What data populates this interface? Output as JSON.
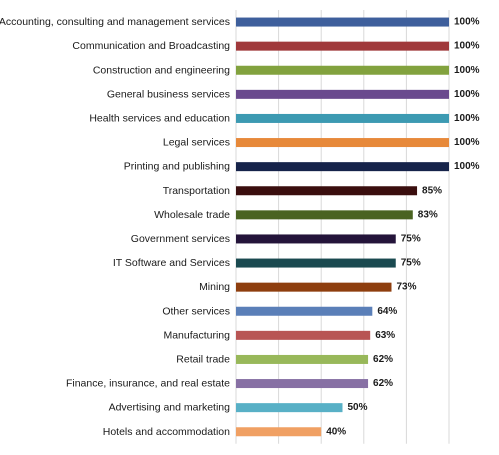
{
  "chart_data": {
    "type": "bar",
    "orientation": "horizontal",
    "xlim": [
      0,
      100
    ],
    "grid": true,
    "legend": "none",
    "categories": [
      "Accounting, consulting and management services",
      "Communication and Broadcasting",
      "Construction and engineering",
      "General business services",
      "Health services and education",
      "Legal services",
      "Printing and publishing",
      "Transportation",
      "Wholesale trade",
      "Government services",
      "IT Software and Services",
      "Mining",
      "Other services",
      "Manufacturing",
      "Retail trade",
      "Finance, insurance, and real estate",
      "Advertising and marketing",
      "Hotels and accommodation"
    ],
    "values": [
      100,
      100,
      100,
      100,
      100,
      100,
      100,
      85,
      83,
      75,
      75,
      73,
      64,
      63,
      62,
      62,
      50,
      40
    ],
    "value_labels": [
      "100%",
      "100%",
      "100%",
      "100%",
      "100%",
      "100%",
      "100%",
      "85%",
      "83%",
      "75%",
      "75%",
      "73%",
      "64%",
      "63%",
      "62%",
      "62%",
      "50%",
      "40%"
    ],
    "colors": [
      "#3E5F9C",
      "#A0393B",
      "#82A23E",
      "#6A4A8E",
      "#3C9AB2",
      "#E7893A",
      "#16234A",
      "#3A0E0E",
      "#4A6321",
      "#24143A",
      "#1A4A50",
      "#8E3E0E",
      "#5A7FB8",
      "#B85554",
      "#98B85A",
      "#8770A4",
      "#58B0C6",
      "#F0A063"
    ]
  }
}
